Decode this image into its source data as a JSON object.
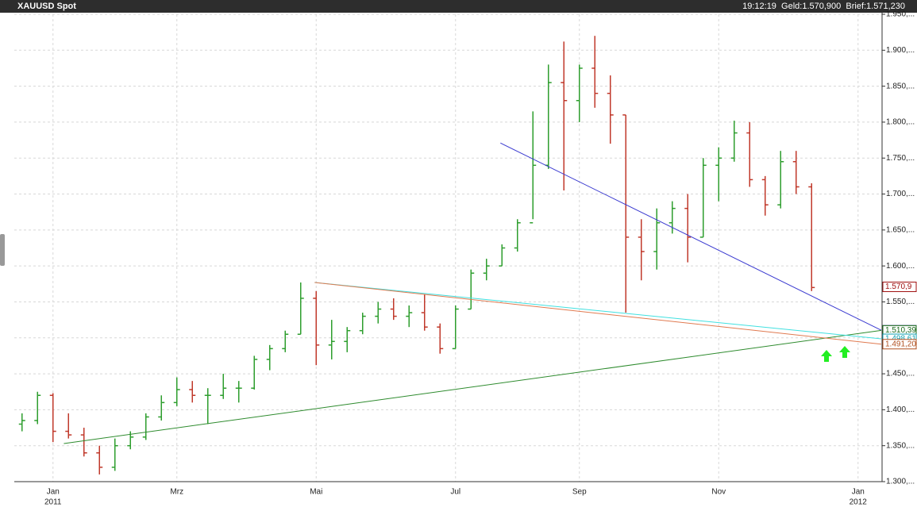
{
  "header": {
    "title": "XAUUSD Spot",
    "quote": "19:12:19  Geld:1.570,900  Brief:1.571,230"
  },
  "chart_data": {
    "type": "ohlc",
    "up_color": "#2e9e2e",
    "down_color": "#c0392b",
    "categories": [
      null,
      null,
      "Jan",
      null,
      null,
      null,
      null,
      null,
      null,
      null,
      "Mrz",
      null,
      null,
      null,
      null,
      null,
      null,
      null,
      null,
      "Mai",
      null,
      null,
      null,
      null,
      null,
      null,
      null,
      null,
      "Jul",
      null,
      null,
      null,
      null,
      null,
      null,
      null,
      "Sep",
      null,
      null,
      null,
      null,
      null,
      null,
      null,
      null,
      "Nov",
      null,
      null,
      null,
      null,
      null,
      null,
      null,
      null,
      "Jan",
      null
    ],
    "category_years": [
      null,
      null,
      "2011",
      null,
      null,
      null,
      null,
      null,
      null,
      null,
      null,
      null,
      null,
      null,
      null,
      null,
      null,
      null,
      null,
      null,
      null,
      null,
      null,
      null,
      null,
      null,
      null,
      null,
      null,
      null,
      null,
      null,
      null,
      null,
      null,
      null,
      null,
      null,
      null,
      null,
      null,
      null,
      null,
      null,
      null,
      null,
      null,
      null,
      null,
      null,
      null,
      null,
      null,
      null,
      "2012",
      null
    ],
    "open": [
      1380,
      1385,
      1420,
      1370,
      1365,
      1340,
      1320,
      1350,
      1362,
      1390,
      1410,
      1428,
      1420,
      1420,
      1430,
      1430,
      1470,
      1485,
      1505,
      1555,
      1490,
      1495,
      1510,
      1530,
      1540,
      1530,
      1535,
      1515,
      1485,
      1540,
      1590,
      1600,
      1625,
      1660,
      1740,
      1855,
      1830,
      1875,
      1840,
      1810,
      1640,
      1620,
      1660,
      1680,
      1640,
      1740,
      1750,
      1785,
      1720,
      1685,
      1745,
      1710,
      null,
      null,
      null,
      null
    ],
    "high": [
      1395,
      1425,
      1423,
      1395,
      1375,
      1350,
      1360,
      1370,
      1395,
      1420,
      1445,
      1440,
      1430,
      1450,
      1440,
      1475,
      1490,
      1510,
      1577,
      1565,
      1525,
      1515,
      1535,
      1550,
      1555,
      1545,
      1560,
      1520,
      1545,
      1595,
      1610,
      1630,
      1665,
      1815,
      1880,
      1912,
      1880,
      1920,
      1865,
      1810,
      1665,
      1680,
      1690,
      1700,
      1750,
      1765,
      1802,
      1800,
      1725,
      1760,
      1760,
      1715,
      null,
      null,
      null,
      null
    ],
    "low": [
      1370,
      1380,
      1355,
      1360,
      1335,
      1310,
      1315,
      1345,
      1358,
      1385,
      1405,
      1410,
      1380,
      1415,
      1410,
      1428,
      1455,
      1480,
      1505,
      1462,
      1470,
      1480,
      1505,
      1520,
      1525,
      1515,
      1510,
      1478,
      1485,
      1540,
      1580,
      1600,
      1620,
      1665,
      1735,
      1705,
      1800,
      1820,
      1770,
      1535,
      1580,
      1595,
      1645,
      1605,
      1640,
      1690,
      1745,
      1710,
      1670,
      1680,
      1700,
      1565,
      null,
      null,
      null,
      null
    ],
    "close": [
      1385,
      1420,
      1370,
      1365,
      1340,
      1320,
      1350,
      1362,
      1390,
      1410,
      1428,
      1420,
      1420,
      1430,
      1430,
      1470,
      1485,
      1505,
      1555,
      1490,
      1495,
      1510,
      1530,
      1540,
      1530,
      1535,
      1515,
      1485,
      1540,
      1590,
      1600,
      1625,
      1660,
      1740,
      1855,
      1830,
      1875,
      1840,
      1810,
      1640,
      1620,
      1660,
      1680,
      1640,
      1740,
      1750,
      1785,
      1720,
      1685,
      1745,
      1710,
      1570,
      null,
      null,
      null,
      null
    ],
    "ylim": [
      1300,
      1950
    ],
    "yticks": [
      {
        "value": 1300,
        "label": "1.300,..."
      },
      {
        "value": 1350,
        "label": "1.350,..."
      },
      {
        "value": 1400,
        "label": "1.400,..."
      },
      {
        "value": 1450,
        "label": "1.450,..."
      },
      {
        "value": 1500,
        "label": "1.500,..."
      },
      {
        "value": 1550,
        "label": "1.550,..."
      },
      {
        "value": 1600,
        "label": "1.600,..."
      },
      {
        "value": 1650,
        "label": "1.650,..."
      },
      {
        "value": 1700,
        "label": "1.700,..."
      },
      {
        "value": 1750,
        "label": "1.750,..."
      },
      {
        "value": 1800,
        "label": "1.800,..."
      },
      {
        "value": 1850,
        "label": "1.850,..."
      },
      {
        "value": 1900,
        "label": "1.900,..."
      },
      {
        "value": 1950,
        "label": "1.950,..."
      }
    ],
    "grid": true,
    "trendlines": [
      {
        "color": "#3a3ad0",
        "x": [
          30.9,
          55.5
        ],
        "values": [
          1771,
          1510.52
        ]
      },
      {
        "color": "#2e8b2e",
        "x": [
          2.7,
          55.5
        ],
        "values": [
          1353,
          1510.39
        ]
      },
      {
        "color": "#40e0e0",
        "x": [
          18.9,
          55.5
        ],
        "values": [
          1577,
          1498.61
        ]
      },
      {
        "color": "#e07a50",
        "x": [
          18.9,
          55.5
        ],
        "values": [
          1577,
          1491.2
        ]
      }
    ],
    "price_markers": [
      {
        "value": 1570.9,
        "label": "1.570,9",
        "color": "#a01010"
      },
      {
        "value": 1510.52,
        "label": "1.510,52",
        "color": "#1a1a8c"
      },
      {
        "value": 1510.39,
        "label": "1.510,39",
        "color": "#1a6a1a"
      },
      {
        "value": 1498.61,
        "label": "1.498,61",
        "color": "#10a0b0"
      },
      {
        "value": 1491.2,
        "label": "1.491,20",
        "color": "#b05020"
      }
    ]
  }
}
